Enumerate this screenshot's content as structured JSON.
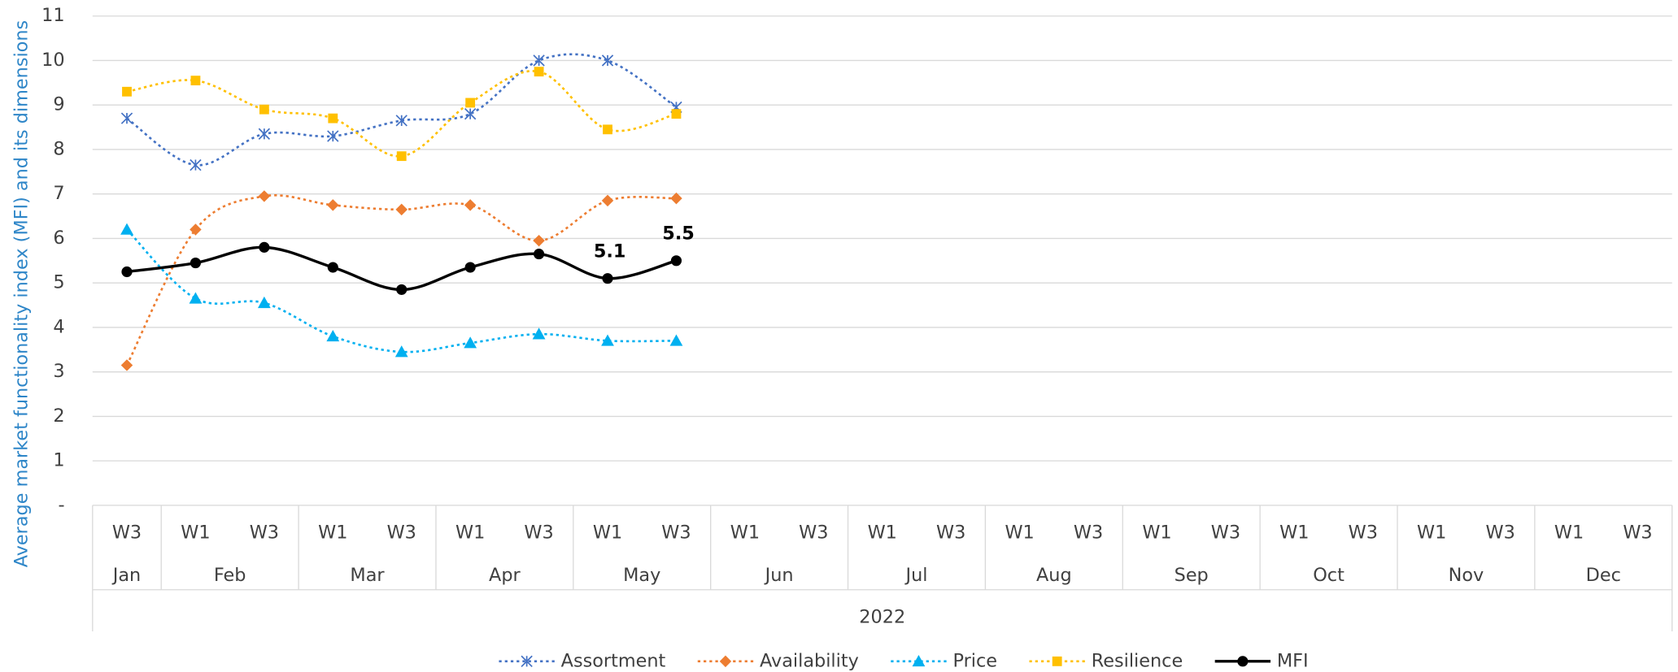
{
  "chart_data": {
    "type": "line",
    "y_label": "Average market functionality index (MFI) and its dimensions",
    "categories": [
      {
        "month": "Jan",
        "week": "W3"
      },
      {
        "month": "Feb",
        "week": "W1"
      },
      {
        "month": "Feb",
        "week": "W3"
      },
      {
        "month": "Mar",
        "week": "W1"
      },
      {
        "month": "Mar",
        "week": "W3"
      },
      {
        "month": "Apr",
        "week": "W1"
      },
      {
        "month": "Apr",
        "week": "W3"
      },
      {
        "month": "May",
        "week": "W1"
      },
      {
        "month": "May",
        "week": "W3"
      },
      {
        "month": "Jun",
        "week": "W1"
      },
      {
        "month": "Jun",
        "week": "W3"
      },
      {
        "month": "Jul",
        "week": "W1"
      },
      {
        "month": "Jul",
        "week": "W3"
      },
      {
        "month": "Aug",
        "week": "W1"
      },
      {
        "month": "Aug",
        "week": "W3"
      },
      {
        "month": "Sep",
        "week": "W1"
      },
      {
        "month": "Sep",
        "week": "W3"
      },
      {
        "month": "Oct",
        "week": "W1"
      },
      {
        "month": "Oct",
        "week": "W3"
      },
      {
        "month": "Nov",
        "week": "W1"
      },
      {
        "month": "Nov",
        "week": "W3"
      },
      {
        "month": "Dec",
        "week": "W1"
      },
      {
        "month": "Dec",
        "week": "W3"
      }
    ],
    "category_group": "2022",
    "ylim": [
      0,
      11
    ],
    "yticks": [
      {
        "value": 0,
        "label": "-"
      },
      1,
      2,
      3,
      4,
      5,
      6,
      7,
      8,
      9,
      10,
      11
    ],
    "grid": true,
    "legend": "bottom",
    "series": [
      {
        "name": "Assortment",
        "color": "#4472c4",
        "dash": "dotted",
        "marker": "asterisk",
        "values": [
          8.7,
          7.65,
          8.35,
          8.3,
          8.65,
          8.8,
          10.0,
          10.0,
          8.95,
          null,
          null,
          null,
          null,
          null,
          null,
          null,
          null,
          null,
          null,
          null,
          null,
          null,
          null
        ]
      },
      {
        "name": "Availability",
        "color": "#ed7d31",
        "dash": "dotted",
        "marker": "diamond",
        "values": [
          3.15,
          6.2,
          6.95,
          6.75,
          6.65,
          6.75,
          5.95,
          6.85,
          6.9,
          null,
          null,
          null,
          null,
          null,
          null,
          null,
          null,
          null,
          null,
          null,
          null,
          null,
          null
        ]
      },
      {
        "name": "Price",
        "color": "#00b0f0",
        "dash": "dotted",
        "marker": "triangle",
        "values": [
          6.2,
          4.65,
          4.55,
          3.8,
          3.45,
          3.65,
          3.85,
          3.7,
          3.7,
          null,
          null,
          null,
          null,
          null,
          null,
          null,
          null,
          null,
          null,
          null,
          null,
          null,
          null
        ]
      },
      {
        "name": "Resilience",
        "color": "#ffc000",
        "dash": "dotted",
        "marker": "square",
        "values": [
          9.3,
          9.55,
          8.9,
          8.7,
          7.85,
          9.05,
          9.75,
          8.45,
          8.8,
          null,
          null,
          null,
          null,
          null,
          null,
          null,
          null,
          null,
          null,
          null,
          null,
          null,
          null
        ]
      },
      {
        "name": "MFI",
        "color": "#000000",
        "dash": "solid",
        "marker": "circle",
        "values": [
          5.25,
          5.45,
          5.8,
          5.35,
          4.85,
          5.35,
          5.65,
          5.1,
          5.5,
          null,
          null,
          null,
          null,
          null,
          null,
          null,
          null,
          null,
          null,
          null,
          null,
          null,
          null
        ],
        "value_labels": [
          null,
          null,
          null,
          null,
          null,
          null,
          null,
          "5.1",
          "5.5",
          null,
          null,
          null,
          null,
          null,
          null,
          null,
          null,
          null,
          null,
          null,
          null,
          null,
          null
        ]
      }
    ]
  }
}
